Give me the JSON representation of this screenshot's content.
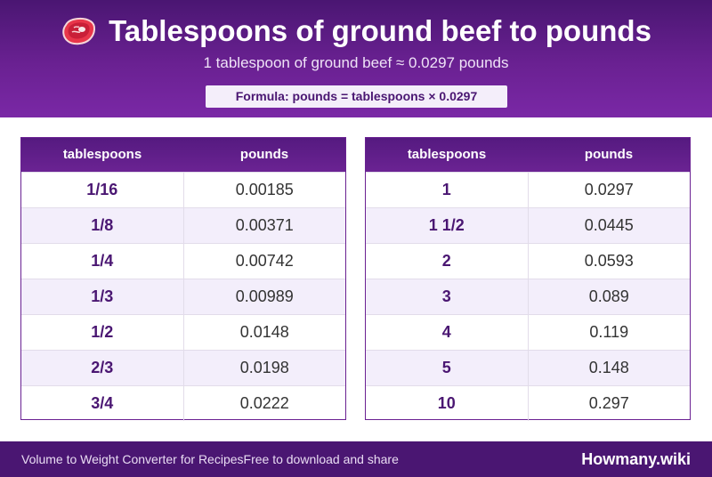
{
  "header": {
    "icon": "steak-icon",
    "title": "Tablespoons of ground beef to pounds",
    "subtitle": "1 tablespoon of ground beef ≈ 0.0297 pounds",
    "formula": "Formula: pounds = tablespoons × 0.0297"
  },
  "tables": [
    {
      "headers": [
        "tablespoons",
        "pounds"
      ],
      "rows": [
        [
          "1/16",
          "0.00185"
        ],
        [
          "1/8",
          "0.00371"
        ],
        [
          "1/4",
          "0.00742"
        ],
        [
          "1/3",
          "0.00989"
        ],
        [
          "1/2",
          "0.0148"
        ],
        [
          "2/3",
          "0.0198"
        ],
        [
          "3/4",
          "0.0222"
        ]
      ]
    },
    {
      "headers": [
        "tablespoons",
        "pounds"
      ],
      "rows": [
        [
          "1",
          "0.0297"
        ],
        [
          "1 1/2",
          "0.0445"
        ],
        [
          "2",
          "0.0593"
        ],
        [
          "3",
          "0.089"
        ],
        [
          "4",
          "0.119"
        ],
        [
          "5",
          "0.148"
        ],
        [
          "10",
          "0.297"
        ]
      ]
    }
  ],
  "footer": {
    "left": "Volume to Weight Converter for RecipesFree to download and share",
    "brand": "Howmany.wiki"
  },
  "colors": {
    "header_purple": "#6a2192",
    "footer_purple": "#4a1672",
    "row_alt": "#f3eefb"
  }
}
